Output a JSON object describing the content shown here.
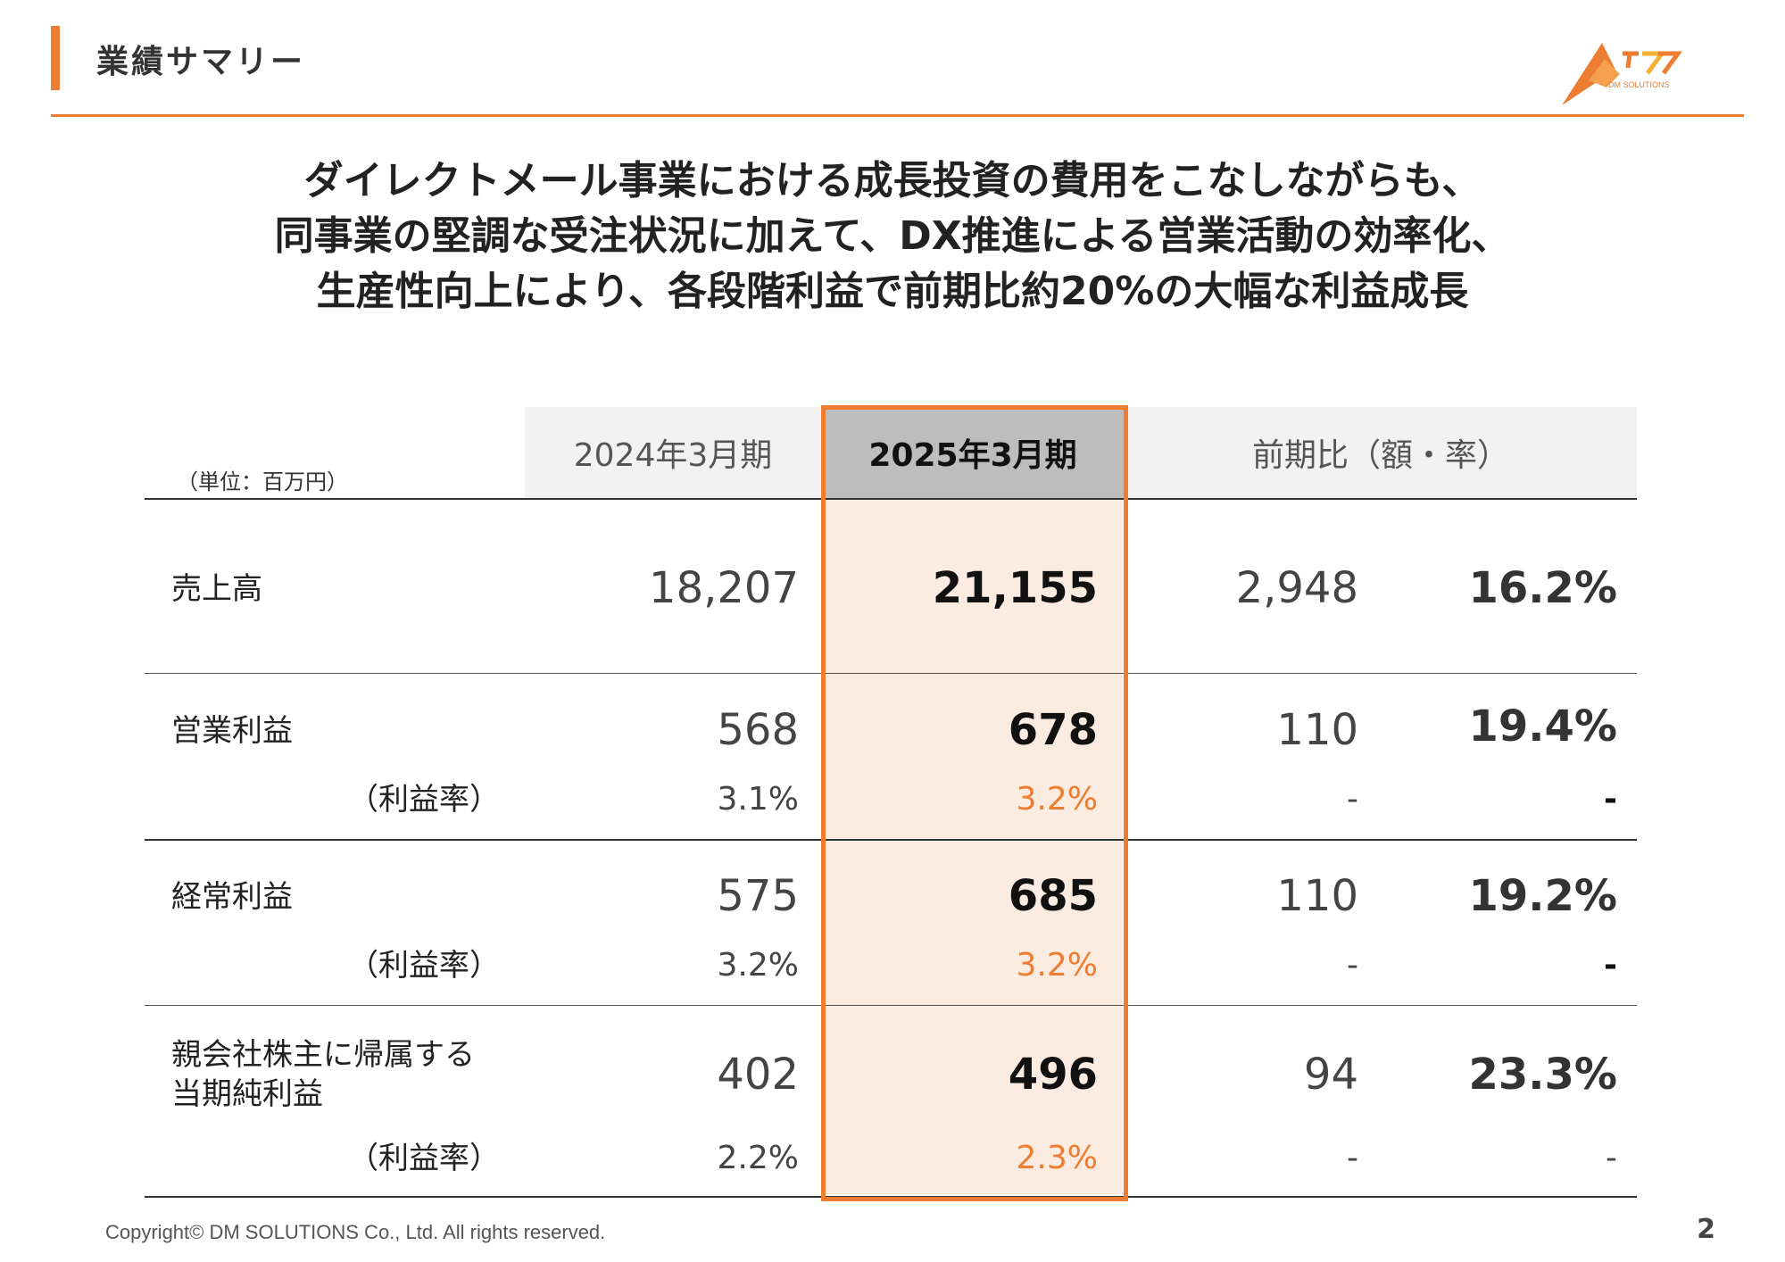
{
  "header": {
    "title": "業績サマリー",
    "logo_text": "DM SOLUTIONS"
  },
  "headline": {
    "line1": "ダイレクトメール事業における成長投資の費用をこなしながらも、",
    "line2": "同事業の堅調な受注状況に加えて、DX推進による営業活動の効率化、",
    "line3": "生産性向上により、各段階利益で前期比約20%の大幅な利益成長"
  },
  "table": {
    "unit": "（単位：百万円）",
    "columns": {
      "prev": "2024年3月期",
      "curr": "2025年3月期",
      "diff": "前期比（額・率）"
    },
    "rows": [
      {
        "label": "売上高",
        "prev": "18,207",
        "curr": "21,155",
        "diff_amount": "2,948",
        "diff_rate": "16.2%"
      },
      {
        "label": "営業利益",
        "prev": "568",
        "curr": "678",
        "diff_amount": "110",
        "diff_rate": "19.4%",
        "margin_label": "（利益率）",
        "margin_prev": "3.1%",
        "margin_curr": "3.2%",
        "margin_diff_amount": "-",
        "margin_diff_rate": "-"
      },
      {
        "label": "経常利益",
        "prev": "575",
        "curr": "685",
        "diff_amount": "110",
        "diff_rate": "19.2%",
        "margin_label": "（利益率）",
        "margin_prev": "3.2%",
        "margin_curr": "3.2%",
        "margin_diff_amount": "-",
        "margin_diff_rate": "-"
      },
      {
        "label_line1": "親会社株主に帰属する",
        "label_line2": "当期純利益",
        "prev": "402",
        "curr": "496",
        "diff_amount": "94",
        "diff_rate": "23.3%",
        "margin_label": "（利益率）",
        "margin_prev": "2.2%",
        "margin_curr": "2.3%",
        "margin_diff_amount": "-",
        "margin_diff_rate": "-"
      }
    ]
  },
  "footer": {
    "copyright": "Copyright© DM SOLUTIONS Co., Ltd. All rights reserved.",
    "page": "2"
  },
  "colors": {
    "accent": "#ED7D31",
    "highlight_fill": "#FBEBE0",
    "header_gray": "#f2f2f2",
    "header_dark": "#bdbdbd"
  }
}
